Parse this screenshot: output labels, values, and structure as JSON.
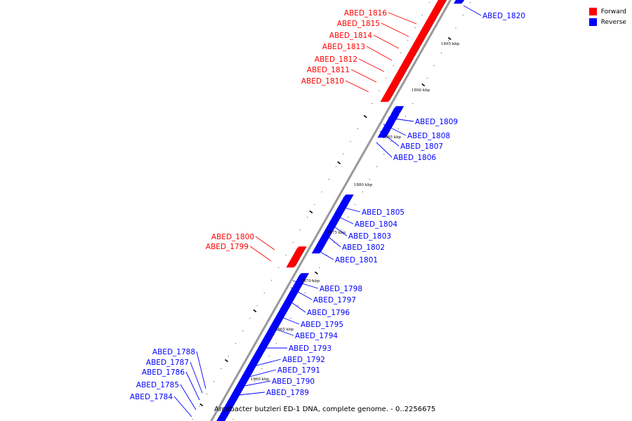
{
  "title": "Arcobacter butzleri ED-1 DNA, complete genome. - 0..2256675",
  "colors": {
    "forward": "#ff0000",
    "reverse": "#0000ff",
    "backbone": "#999999"
  },
  "legend": [
    {
      "label": "Forward",
      "color": "#ff0000"
    },
    {
      "label": "Reverse",
      "color": "#0000ff"
    }
  ],
  "genes": [
    {
      "id": "ABED_1820",
      "strand": "reverse"
    },
    {
      "id": "ABED_1816",
      "strand": "forward"
    },
    {
      "id": "ABED_1815",
      "strand": "forward"
    },
    {
      "id": "ABED_1814",
      "strand": "forward"
    },
    {
      "id": "ABED_1813",
      "strand": "forward"
    },
    {
      "id": "ABED_1812",
      "strand": "forward"
    },
    {
      "id": "ABED_1811",
      "strand": "forward"
    },
    {
      "id": "ABED_1810",
      "strand": "forward"
    },
    {
      "id": "ABED_1809",
      "strand": "reverse"
    },
    {
      "id": "ABED_1808",
      "strand": "reverse"
    },
    {
      "id": "ABED_1807",
      "strand": "reverse"
    },
    {
      "id": "ABED_1806",
      "strand": "reverse"
    },
    {
      "id": "ABED_1805",
      "strand": "reverse"
    },
    {
      "id": "ABED_1804",
      "strand": "reverse"
    },
    {
      "id": "ABED_1803",
      "strand": "reverse"
    },
    {
      "id": "ABED_1802",
      "strand": "reverse"
    },
    {
      "id": "ABED_1801",
      "strand": "reverse"
    },
    {
      "id": "ABED_1800",
      "strand": "forward"
    },
    {
      "id": "ABED_1799",
      "strand": "forward"
    },
    {
      "id": "ABED_1798",
      "strand": "reverse"
    },
    {
      "id": "ABED_1797",
      "strand": "reverse"
    },
    {
      "id": "ABED_1796",
      "strand": "reverse"
    },
    {
      "id": "ABED_1795",
      "strand": "reverse"
    },
    {
      "id": "ABED_1794",
      "strand": "reverse"
    },
    {
      "id": "ABED_1793",
      "strand": "reverse"
    },
    {
      "id": "ABED_1792",
      "strand": "reverse"
    },
    {
      "id": "ABED_1791",
      "strand": "reverse"
    },
    {
      "id": "ABED_1790",
      "strand": "reverse"
    },
    {
      "id": "ABED_1789",
      "strand": "reverse"
    },
    {
      "id": "ABED_1788",
      "strand": "reverse"
    },
    {
      "id": "ABED_1787",
      "strand": "reverse"
    },
    {
      "id": "ABED_1786",
      "strand": "reverse"
    },
    {
      "id": "ABED_1785",
      "strand": "reverse"
    },
    {
      "id": "ABED_1784",
      "strand": "reverse"
    }
  ],
  "kbp_ticks": [
    "1895 kbp",
    "1890 kbp",
    "1885 kbp",
    "1880 kbp",
    "1875 kbp",
    "1870 kbp",
    "1865 kbp",
    "1860 kbp"
  ]
}
